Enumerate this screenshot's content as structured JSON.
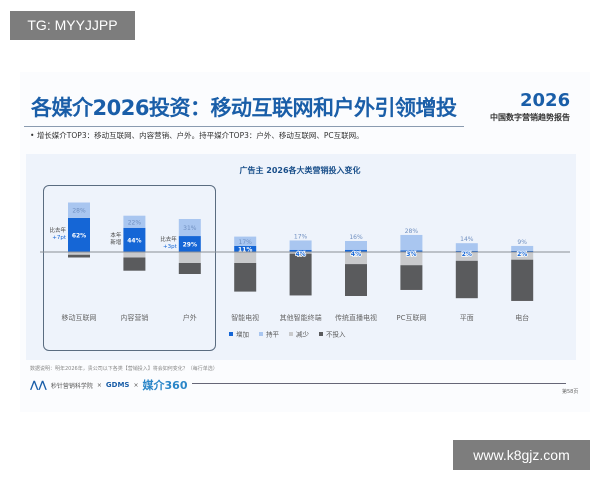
{
  "watermarks": {
    "top_left": "TG: MYYJJPP",
    "bottom_right": "www.k8gjz.com"
  },
  "header": {
    "title": "各媒介2026投资：移动互联网和户外引领增投",
    "logo_year": "2026",
    "logo_subtitle": "中国数字营销趋势报告"
  },
  "bullet": "增长媒介TOP3：移动互联网、内容营销、户外。持平媒介TOP3：户外、移动互联网、PC互联网。",
  "colors": {
    "increase": "#1566d6",
    "flat": "#a9c6f0",
    "decrease": "#c9cacc",
    "none": "#5a5b5d",
    "title": "#1a5ea8"
  },
  "chart_data": {
    "type": "bar",
    "stacked": "diverging",
    "title": "广告主 2026各大类营销投入变化",
    "categories": [
      "移动互联网",
      "内容营销",
      "户外",
      "智能电视",
      "其他智能终端",
      "传统直播电视",
      "PC互联网",
      "平面",
      "电台"
    ],
    "series": [
      {
        "name": "增加",
        "values": [
          62,
          44,
          29,
          11,
          4,
          4,
          3,
          2,
          2
        ]
      },
      {
        "name": "持平",
        "values": [
          28,
          22,
          31,
          17,
          17,
          16,
          28,
          14,
          9
        ]
      },
      {
        "name": "减少",
        "values": [
          5,
          10,
          20,
          20,
          3,
          22,
          24,
          16,
          14
        ]
      },
      {
        "name": "不投入",
        "values": [
          5,
          24,
          20,
          52,
          76,
          58,
          45,
          68,
          75
        ]
      }
    ],
    "data_labels": {
      "增加": [
        "62%",
        "44%",
        "29%",
        "11%",
        "4%",
        "4%",
        "3%",
        "2%",
        "2%"
      ],
      "持平": [
        "28%",
        "22%",
        "31%",
        "17%",
        "17%",
        "16%",
        "28%",
        "14%",
        "9%"
      ]
    },
    "annotations": [
      {
        "category": "移动互联网",
        "text1": "比去年",
        "text2": "+7pt"
      },
      {
        "category": "内容营销",
        "text1": "本年",
        "text2": "新增"
      },
      {
        "category": "户外",
        "text1": "比去年",
        "text2": "+3pt"
      }
    ],
    "legend_position": "bottom-left"
  },
  "footer": {
    "note": "数据说明：明年2026年，贵公司以下各类【营销投入】将会如何变化？（每行单选）",
    "org1": "秒针营销科学院",
    "x": "×",
    "org2": "GDMS",
    "org3": "媒介360",
    "page": "第58页"
  }
}
